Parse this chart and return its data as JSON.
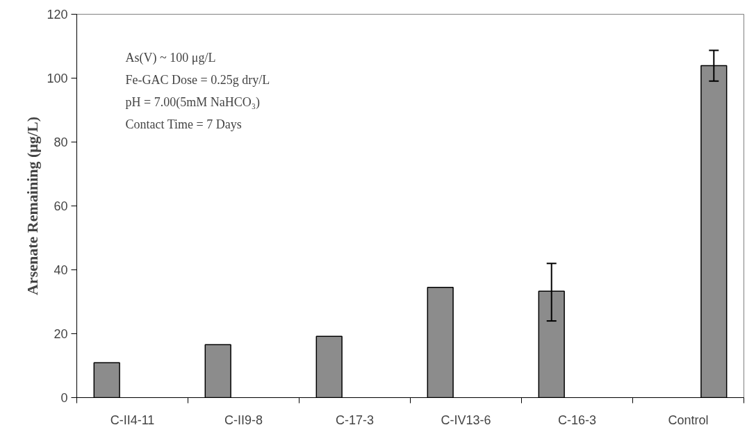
{
  "chart_data": {
    "type": "bar",
    "ylabel": "Arsenate Remaining (μg/L)",
    "categories": [
      "C-II4-11",
      "C-II9-8",
      "C-17-3",
      "C-IV13-6",
      "C-16-3",
      "Control"
    ],
    "series": [
      {
        "color": "#8c8c8c",
        "values": [
          10.9,
          16.6,
          19.2,
          34.5,
          33.3,
          null
        ],
        "errors": [
          null,
          null,
          null,
          null,
          [
            24.0,
            42.0
          ],
          null
        ]
      },
      {
        "color": "#8c8c8c",
        "values": [
          null,
          null,
          null,
          null,
          null,
          103.9
        ],
        "errors": [
          null,
          null,
          null,
          null,
          null,
          [
            99.1,
            108.7
          ]
        ]
      }
    ],
    "ylim": [
      0,
      120
    ],
    "yticks": [
      0,
      20,
      40,
      60,
      80,
      100,
      120
    ],
    "grid": false,
    "annotations": [
      "As(V) ~  100 μg/L",
      "Fe-GAC Dose = 0.25g dry/L",
      "pH = 7.00(5mM NaHCO₃)",
      "Contact Time = 7 Days"
    ]
  }
}
